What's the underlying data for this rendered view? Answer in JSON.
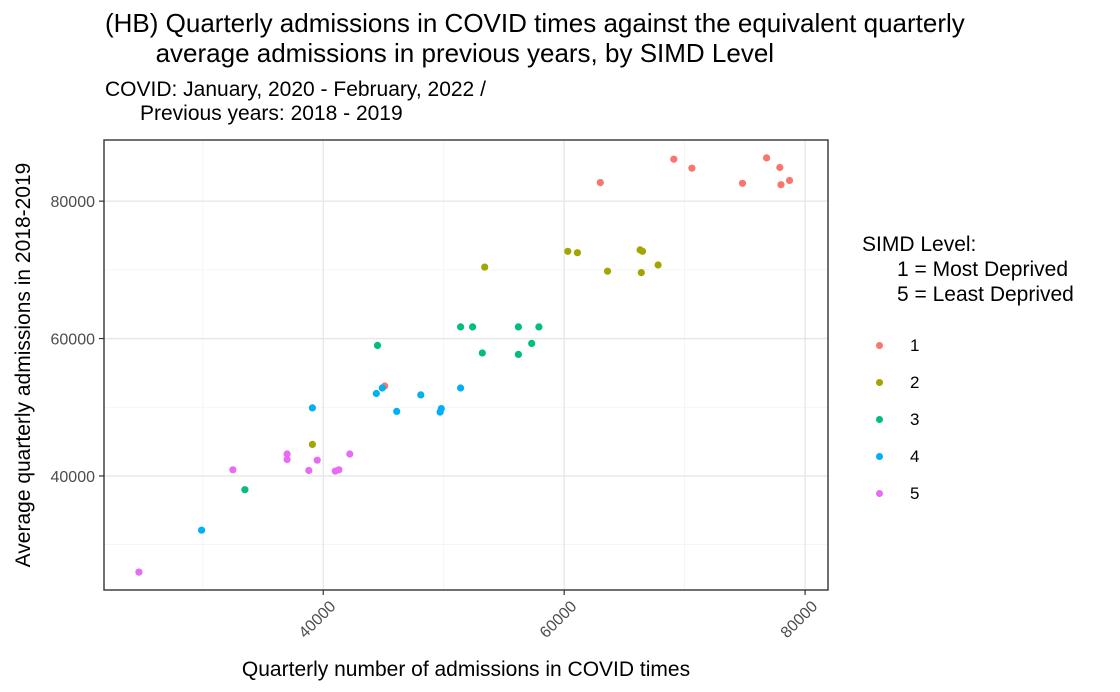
{
  "title": "(HB) Quarterly admissions in COVID times against the equivalent quarterly\n       average admissions in previous years, by SIMD Level",
  "subtitle": "COVID: January, 2020 - February, 2022 /\n      Previous years: 2018 - 2019",
  "legend": {
    "title": "SIMD Level:\n      1 = Most Deprived\n      5 = Least Deprived",
    "items": [
      {
        "label": "1",
        "color": "#F8766D"
      },
      {
        "label": "2",
        "color": "#A3A500"
      },
      {
        "label": "3",
        "color": "#00BF7D"
      },
      {
        "label": "4",
        "color": "#00B0F6"
      },
      {
        "label": "5",
        "color": "#E76BF3"
      }
    ]
  },
  "chart_data": {
    "type": "scatter",
    "xlabel": "Quarterly number of admissions in COVID times",
    "ylabel": "Average quarterly admissions in 2018-2019",
    "xlim": [
      21800,
      81900
    ],
    "ylim": [
      23400,
      88900
    ],
    "xticks": [
      40000,
      60000,
      80000
    ],
    "yticks": [
      40000,
      60000,
      80000
    ],
    "xtick_labels": [
      "40000",
      "60000",
      "80000"
    ],
    "ytick_labels": [
      "40000",
      "60000",
      "80000"
    ],
    "grid": true,
    "legend_position": "right",
    "series": [
      {
        "name": "1",
        "color": "#F8766D",
        "points": [
          [
            45100,
            53100
          ],
          [
            63000,
            82700
          ],
          [
            69100,
            86100
          ],
          [
            70600,
            84800
          ],
          [
            74800,
            82600
          ],
          [
            76800,
            86300
          ],
          [
            77900,
            84900
          ],
          [
            78000,
            82400
          ],
          [
            78700,
            83000
          ]
        ]
      },
      {
        "name": "2",
        "color": "#A3A500",
        "points": [
          [
            39100,
            44600
          ],
          [
            53400,
            70400
          ],
          [
            60300,
            72700
          ],
          [
            61100,
            72500
          ],
          [
            63600,
            69800
          ],
          [
            66300,
            72900
          ],
          [
            66500,
            72700
          ],
          [
            66400,
            69600
          ],
          [
            67800,
            70700
          ]
        ]
      },
      {
        "name": "3",
        "color": "#00BF7D",
        "points": [
          [
            33500,
            38000
          ],
          [
            44500,
            59000
          ],
          [
            51400,
            61700
          ],
          [
            52400,
            61700
          ],
          [
            53200,
            57900
          ],
          [
            56200,
            61700
          ],
          [
            56200,
            57700
          ],
          [
            57300,
            59300
          ],
          [
            57900,
            61700
          ]
        ]
      },
      {
        "name": "4",
        "color": "#00B0F6",
        "points": [
          [
            29900,
            32100
          ],
          [
            39100,
            49900
          ],
          [
            44400,
            52000
          ],
          [
            44900,
            52800
          ],
          [
            46100,
            49400
          ],
          [
            48100,
            51800
          ],
          [
            49700,
            49300
          ],
          [
            49800,
            49800
          ],
          [
            51400,
            52800
          ]
        ]
      },
      {
        "name": "5",
        "color": "#E76BF3",
        "points": [
          [
            24700,
            26000
          ],
          [
            32500,
            40900
          ],
          [
            37000,
            43200
          ],
          [
            37000,
            42400
          ],
          [
            38800,
            40800
          ],
          [
            39500,
            42300
          ],
          [
            41000,
            40700
          ],
          [
            41300,
            40900
          ],
          [
            42200,
            43200
          ]
        ]
      }
    ]
  }
}
